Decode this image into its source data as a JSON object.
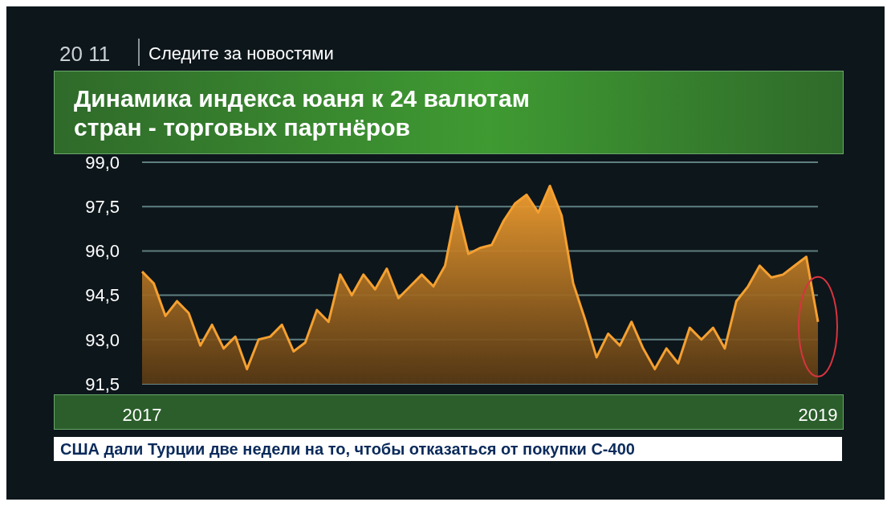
{
  "chart_data": {
    "type": "area",
    "title": "Динамика индекса юаня к 24 валютам стран - торговых партнёров",
    "annotations": [
      "20 11",
      "Следите за новостями",
      "США дали Турции две недели на то, чтобы отказаться от покупки С-400"
    ],
    "categories": [
      "2017",
      null,
      null,
      null,
      null,
      null,
      null,
      null,
      null,
      null,
      null,
      null,
      null,
      null,
      null,
      null,
      null,
      null,
      null,
      null,
      null,
      null,
      null,
      null,
      null,
      null,
      null,
      null,
      null,
      null,
      null,
      null,
      null,
      null,
      null,
      null,
      null,
      null,
      null,
      null,
      null,
      null,
      null,
      null,
      null,
      null,
      null,
      null,
      null,
      null,
      null,
      null,
      null,
      null,
      null,
      null,
      null,
      null,
      "2019"
    ],
    "series": [
      {
        "color": "#f5a030",
        "values": [
          95.3,
          94.9,
          93.8,
          94.3,
          93.9,
          92.8,
          93.5,
          92.7,
          93.1,
          92.0,
          93.0,
          93.1,
          93.5,
          92.6,
          92.9,
          94.0,
          93.6,
          95.2,
          94.5,
          95.2,
          94.7,
          95.4,
          94.4,
          94.8,
          95.2,
          94.8,
          95.5,
          97.5,
          95.9,
          96.1,
          96.2,
          97.0,
          97.6,
          97.9,
          97.3,
          98.2,
          97.2,
          94.9,
          93.7,
          92.4,
          93.2,
          92.8,
          93.6,
          92.7,
          92.0,
          92.7,
          92.2,
          93.4,
          93.0,
          93.4,
          92.7,
          94.3,
          94.8,
          95.5,
          95.1,
          95.2,
          95.5,
          95.8,
          93.6
        ]
      }
    ],
    "ylim": [
      91.5,
      99.0
    ],
    "yticks": [
      {
        "value": 91.5,
        "label": "91,5"
      },
      {
        "value": 93,
        "label": "93,0"
      },
      {
        "value": 94.5,
        "label": "94,5"
      },
      {
        "value": 96,
        "label": "96,0"
      },
      {
        "value": 97.5,
        "label": "97,5"
      },
      {
        "value": 99,
        "label": "99,0"
      }
    ],
    "grid": "y"
  }
}
